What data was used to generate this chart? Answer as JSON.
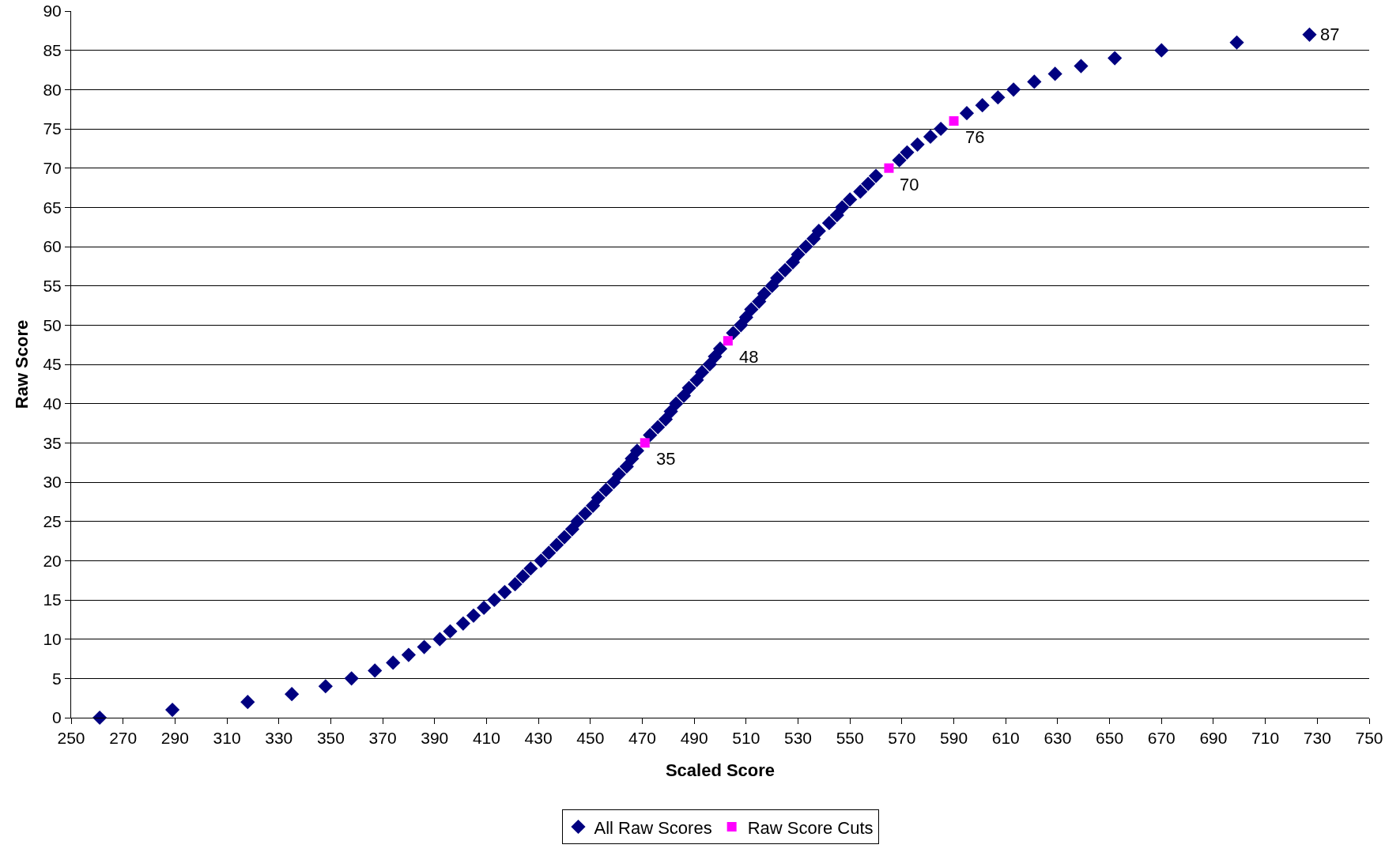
{
  "chart_data": {
    "type": "scatter",
    "xlabel": "Scaled Score",
    "ylabel": "Raw Score",
    "xlim": [
      250,
      750
    ],
    "xticks": [
      250,
      270,
      290,
      310,
      330,
      350,
      370,
      390,
      410,
      430,
      450,
      470,
      490,
      510,
      530,
      550,
      570,
      590,
      610,
      630,
      650,
      670,
      690,
      710,
      730,
      750
    ],
    "ylim": [
      0,
      90
    ],
    "yticks": [
      0,
      5,
      10,
      15,
      20,
      25,
      30,
      35,
      40,
      45,
      50,
      55,
      60,
      65,
      70,
      75,
      80,
      85,
      90
    ],
    "grid": "y",
    "legend": "bottom",
    "series": [
      {
        "name": "All Raw Scores",
        "color": "#000080",
        "marker": "diamond",
        "x": [
          261,
          289,
          318,
          335,
          348,
          358,
          367,
          374,
          380,
          386,
          392,
          396,
          401,
          405,
          409,
          413,
          417,
          421,
          424,
          427,
          431,
          434,
          437,
          440,
          443,
          445,
          448,
          451,
          453,
          456,
          459,
          461,
          464,
          466,
          468,
          471,
          473,
          476,
          479,
          481,
          483,
          486,
          488,
          491,
          493,
          496,
          498,
          500,
          503,
          505,
          508,
          510,
          512,
          515,
          517,
          520,
          522,
          525,
          528,
          530,
          533,
          536,
          538,
          542,
          545,
          547,
          550,
          554,
          557,
          560,
          565,
          569,
          572,
          576,
          581,
          585,
          590,
          595,
          601,
          607,
          613,
          621,
          629,
          639,
          652,
          670,
          699,
          727
        ],
        "values": [
          0,
          1,
          2,
          3,
          4,
          5,
          6,
          7,
          8,
          9,
          10,
          11,
          12,
          13,
          14,
          15,
          16,
          17,
          18,
          19,
          20,
          21,
          22,
          23,
          24,
          25,
          26,
          27,
          28,
          29,
          30,
          31,
          32,
          33,
          34,
          null,
          36,
          37,
          38,
          39,
          40,
          41,
          42,
          43,
          44,
          45,
          46,
          47,
          null,
          49,
          50,
          51,
          52,
          53,
          54,
          55,
          56,
          57,
          58,
          59,
          60,
          61,
          62,
          63,
          64,
          65,
          66,
          67,
          68,
          69,
          null,
          71,
          72,
          73,
          74,
          75,
          null,
          77,
          78,
          79,
          80,
          81,
          82,
          83,
          84,
          85,
          86,
          87
        ],
        "value_labels": [
          null,
          null,
          null,
          null,
          null,
          null,
          null,
          null,
          null,
          null,
          null,
          null,
          null,
          null,
          null,
          null,
          null,
          null,
          null,
          null,
          null,
          null,
          null,
          null,
          null,
          null,
          null,
          null,
          null,
          null,
          null,
          null,
          null,
          null,
          null,
          null,
          null,
          null,
          null,
          null,
          null,
          null,
          null,
          null,
          null,
          null,
          null,
          null,
          null,
          null,
          null,
          null,
          null,
          null,
          null,
          null,
          null,
          null,
          null,
          null,
          null,
          null,
          null,
          null,
          null,
          null,
          null,
          null,
          null,
          null,
          null,
          null,
          null,
          null,
          null,
          null,
          null,
          null,
          null,
          null,
          null,
          null,
          null,
          null,
          null,
          null,
          null,
          "87"
        ]
      },
      {
        "name": "Raw Score Cuts",
        "color": "#ff00ff",
        "marker": "square",
        "x": [
          471,
          503,
          565,
          590
        ],
        "values": [
          35,
          48,
          70,
          76
        ],
        "value_labels": [
          "35",
          "48",
          "70",
          "76"
        ]
      }
    ]
  }
}
